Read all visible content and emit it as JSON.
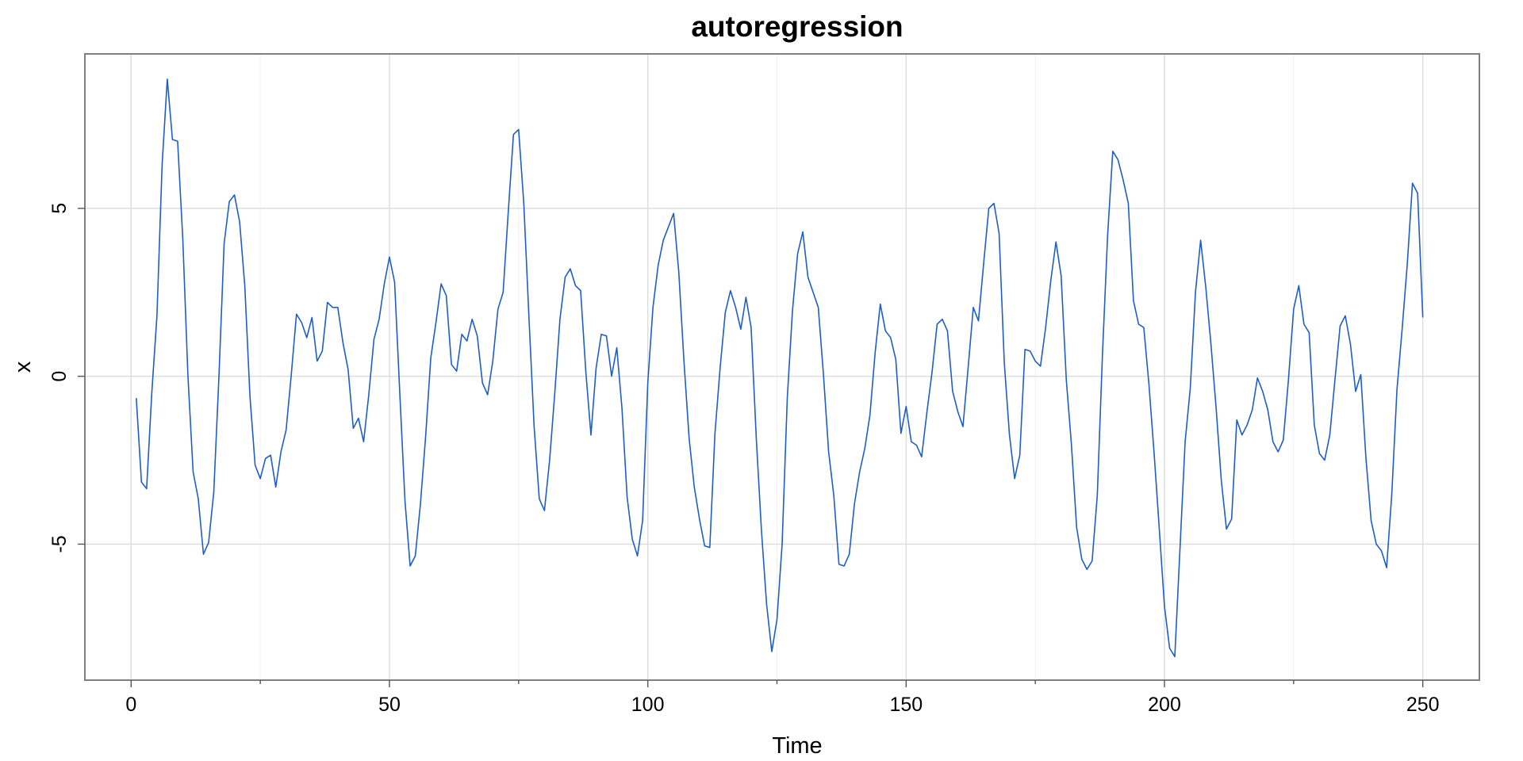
{
  "chart_data": {
    "type": "line",
    "title": "autoregression",
    "xlabel": "Time",
    "ylabel": "x",
    "xlim": [
      -8.95,
      260.95
    ],
    "ylim": [
      -9.05,
      9.6
    ],
    "x_ticks": [
      0,
      50,
      100,
      150,
      200,
      250
    ],
    "x_tick_labels": [
      "0",
      "50",
      "100",
      "150",
      "200",
      "250"
    ],
    "y_ticks": [
      -5,
      0,
      5
    ],
    "y_tick_labels": [
      "-5",
      "0",
      "5"
    ],
    "grid": true,
    "line_color": "#1f5fbf",
    "series": [
      {
        "x": [
          1,
          2,
          3,
          4,
          5,
          6,
          7,
          8,
          9,
          10,
          11,
          12,
          13,
          14,
          15,
          16,
          17,
          18,
          19,
          20,
          21,
          22,
          23,
          24,
          25,
          26,
          27,
          28,
          29,
          30,
          31,
          32,
          33,
          34,
          35,
          36,
          37,
          38,
          39,
          40,
          41,
          42,
          43,
          44,
          45,
          46,
          47,
          48,
          49,
          50,
          51,
          52,
          53,
          54,
          55,
          56,
          57,
          58,
          59,
          60,
          61,
          62,
          63,
          64,
          65,
          66,
          67,
          68,
          69,
          70,
          71,
          72,
          73,
          74,
          75,
          76,
          77,
          78,
          79,
          80,
          81,
          82,
          83,
          84,
          85,
          86,
          87,
          88,
          89,
          90,
          91,
          92,
          93,
          94,
          95,
          96,
          97,
          98,
          99,
          100,
          101,
          102,
          103,
          104,
          105,
          106,
          107,
          108,
          109,
          110,
          111,
          112,
          113,
          114,
          115,
          116,
          117,
          118,
          119,
          120,
          121,
          122,
          123,
          124,
          125,
          126,
          127,
          128,
          129,
          130,
          131,
          132,
          133,
          134,
          135,
          136,
          137,
          138,
          139,
          140,
          141,
          142,
          143,
          144,
          145,
          146,
          147,
          148,
          149,
          150,
          151,
          152,
          153,
          154,
          155,
          156,
          157,
          158,
          159,
          160,
          161,
          162,
          163,
          164,
          165,
          166,
          167,
          168,
          169,
          170,
          171,
          172,
          173,
          174,
          175,
          176,
          177,
          178,
          179,
          180,
          181,
          182,
          183,
          184,
          185,
          186,
          187,
          188,
          189,
          190,
          191,
          192,
          193,
          194,
          195,
          196,
          197,
          198,
          199,
          200,
          201,
          202,
          203,
          204,
          205,
          206,
          207,
          208,
          209,
          210,
          211,
          212,
          213,
          214,
          215,
          216,
          217,
          218,
          219,
          220,
          221,
          222,
          223,
          224,
          225,
          226,
          227,
          228,
          229,
          230,
          231,
          232,
          233,
          234,
          235,
          236,
          237,
          238,
          239,
          240,
          241,
          242,
          243,
          244,
          245,
          246,
          247,
          248,
          249,
          250
        ],
        "y": [
          -0.65,
          -3.15,
          -3.35,
          -0.5,
          1.8,
          6.3,
          8.85,
          7.05,
          7.0,
          4.1,
          0.0,
          -2.85,
          -3.65,
          -5.3,
          -4.95,
          -3.45,
          0.0,
          3.95,
          5.2,
          5.4,
          4.6,
          2.7,
          -0.6,
          -2.65,
          -3.05,
          -2.45,
          -2.35,
          -3.3,
          -2.25,
          -1.6,
          0.05,
          1.85,
          1.6,
          1.15,
          1.75,
          0.45,
          0.75,
          2.2,
          2.05,
          2.05,
          1.0,
          0.2,
          -1.55,
          -1.25,
          -1.95,
          -0.55,
          1.1,
          1.7,
          2.75,
          3.55,
          2.8,
          -0.5,
          -3.7,
          -5.65,
          -5.35,
          -3.8,
          -1.8,
          0.55,
          1.6,
          2.75,
          2.4,
          0.35,
          0.15,
          1.25,
          1.05,
          1.7,
          1.2,
          -0.2,
          -0.55,
          0.45,
          2.0,
          2.5,
          4.9,
          7.2,
          7.35,
          5.15,
          1.75,
          -1.5,
          -3.65,
          -4.0,
          -2.5,
          -0.5,
          1.7,
          2.95,
          3.2,
          2.7,
          2.55,
          0.15,
          -1.75,
          0.25,
          1.25,
          1.2,
          0.0,
          0.85,
          -0.95,
          -3.6,
          -4.85,
          -5.35,
          -4.3,
          -0.2,
          2.05,
          3.3,
          4.05,
          4.45,
          4.85,
          3.1,
          0.45,
          -1.85,
          -3.3,
          -4.25,
          -5.05,
          -5.1,
          -1.7,
          0.25,
          1.9,
          2.55,
          2.05,
          1.4,
          2.35,
          1.45,
          -1.85,
          -4.6,
          -6.8,
          -8.2,
          -7.25,
          -5.0,
          -0.65,
          1.95,
          3.65,
          4.3,
          2.95,
          2.5,
          2.05,
          0.05,
          -2.25,
          -3.55,
          -5.6,
          -5.65,
          -5.3,
          -3.8,
          -2.85,
          -2.15,
          -1.15,
          0.7,
          2.15,
          1.35,
          1.15,
          0.5,
          -1.7,
          -0.9,
          -1.95,
          -2.05,
          -2.4,
          -1.1,
          0.1,
          1.55,
          1.7,
          1.35,
          -0.45,
          -1.05,
          -1.5,
          0.25,
          2.05,
          1.65,
          3.35,
          5.0,
          5.15,
          4.25,
          0.4,
          -1.75,
          -3.05,
          -2.35,
          0.8,
          0.75,
          0.45,
          0.3,
          1.45,
          2.85,
          4.0,
          3.0,
          -0.1,
          -2.05,
          -4.5,
          -5.45,
          -5.75,
          -5.5,
          -3.55,
          0.65,
          4.2,
          6.7,
          6.45,
          5.85,
          5.15,
          2.25,
          1.55,
          1.45,
          -0.25,
          -2.3,
          -4.55,
          -6.85,
          -8.1,
          -8.35,
          -5.15,
          -1.95,
          -0.35,
          2.5,
          4.05,
          2.65,
          0.95,
          -0.95,
          -3.1,
          -4.55,
          -4.25,
          -1.3,
          -1.75,
          -1.45,
          -1.0,
          -0.05,
          -0.45,
          -1.0,
          -1.95,
          -2.25,
          -1.9,
          -0.1,
          2.0,
          2.7,
          1.55,
          1.3,
          -1.45,
          -2.3,
          -2.5,
          -1.75,
          -0.1,
          1.5,
          1.8,
          0.95,
          -0.45,
          0.05,
          -2.45,
          -4.3,
          -5.0,
          -5.2,
          -5.7,
          -3.5,
          -0.4,
          1.4,
          3.35,
          5.75,
          5.45,
          1.75
        ]
      }
    ]
  }
}
